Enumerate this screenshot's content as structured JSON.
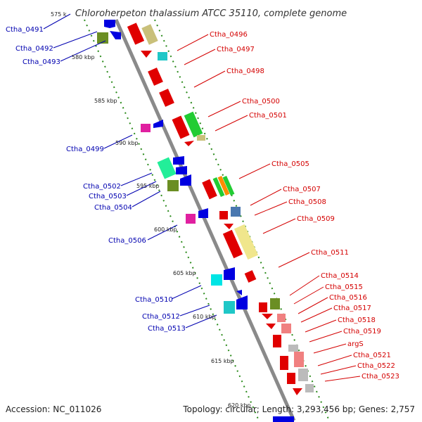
{
  "title": "Chloroherpeton thalassium ATCC 35110, complete genome",
  "footer": {
    "accession": "Accession: NC_011026",
    "summary": "Topology: circular; Length: 3,293,456 bp; Genes: 2,757"
  },
  "colors": {
    "backbone": "#8a8a8a",
    "forward_label": "#d40000",
    "reverse_label": "#0000b0",
    "ticks": "#2a8a1a"
  },
  "ruler": [
    {
      "label": "575 k"
    },
    {
      "label": "580 kbp"
    },
    {
      "label": "585 kbp"
    },
    {
      "label": "590 kbp"
    },
    {
      "label": "595 kbp"
    },
    {
      "label": "600 kbp"
    },
    {
      "label": "605 kbp"
    },
    {
      "label": "610 kbp"
    },
    {
      "label": "615 kbp"
    },
    {
      "label": "620 kbp"
    }
  ],
  "forward_labels": [
    "Ctha_0496",
    "Ctha_0497",
    "Ctha_0498",
    "Ctha_0500",
    "Ctha_0501",
    "Ctha_0505",
    "Ctha_0507",
    "Ctha_0508",
    "Ctha_0509",
    "Ctha_0511",
    "Ctha_0514",
    "Ctha_0515",
    "Ctha_0516",
    "Ctha_0517",
    "Ctha_0518",
    "Ctha_0519",
    "argS",
    "Ctha_0521",
    "Ctha_0522",
    "Ctha_0523"
  ],
  "reverse_labels": [
    "Ctha_0491",
    "Ctha_0492",
    "Ctha_0493",
    "Ctha_0499",
    "Ctha_0502",
    "Ctha_0503",
    "Ctha_0504",
    "Ctha_0506",
    "Ctha_0510",
    "Ctha_0512",
    "Ctha_0513"
  ]
}
